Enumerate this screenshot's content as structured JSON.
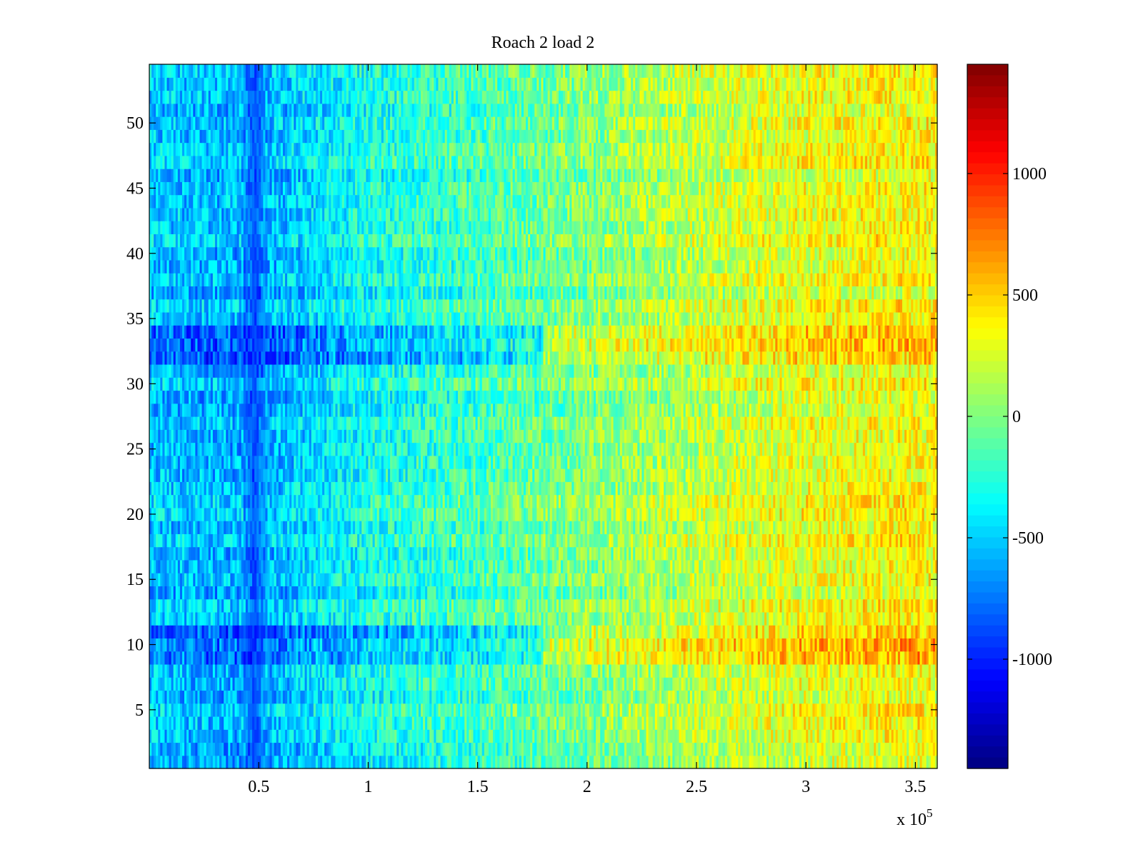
{
  "chart_data": {
    "type": "heatmap",
    "title": "Roach 2 load 2",
    "xlabel": "",
    "ylabel": "",
    "x_multiplier_label": "x 10",
    "x_multiplier_exponent": "5",
    "xlim": [
      0,
      3.6
    ],
    "ylim": [
      0.5,
      54.5
    ],
    "x_ticks": [
      0.5,
      1,
      1.5,
      2,
      2.5,
      3,
      3.5
    ],
    "x_tick_labels": [
      "0.5",
      "1",
      "1.5",
      "2",
      "2.5",
      "3",
      "3.5"
    ],
    "y_ticks": [
      5,
      10,
      15,
      20,
      25,
      30,
      35,
      40,
      45,
      50
    ],
    "y_tick_labels": [
      "5",
      "10",
      "15",
      "20",
      "25",
      "30",
      "35",
      "40",
      "45",
      "50"
    ],
    "rows": 54,
    "colormap": "jet",
    "clim": [
      -1450,
      1450
    ],
    "colorbar_ticks": [
      -1000,
      -500,
      0,
      500,
      1000
    ],
    "colorbar_tick_labels": [
      "-1000",
      "-500",
      "0",
      "500",
      "1000"
    ],
    "trend": {
      "x": [
        0.0,
        0.5,
        1.0,
        1.5,
        2.0,
        2.5,
        3.0,
        3.5,
        3.6
      ],
      "mean_value": [
        -520,
        -600,
        -320,
        -180,
        0,
        170,
        300,
        360,
        340
      ],
      "noise_amplitude": 260
    },
    "features": [
      {
        "x_center": 0.48,
        "x_width": 0.06,
        "value": -1000,
        "description": "dark blue vertical band near x = 0.5"
      },
      {
        "rows": [
          9,
          10,
          11
        ],
        "value_offset": 250,
        "description": "stronger horizontal band near row 10"
      },
      {
        "rows": [
          32,
          33,
          34
        ],
        "value_offset": 250,
        "description": "stronger horizontal band near row 33"
      }
    ],
    "grid": false,
    "colorbar_position": "right"
  }
}
